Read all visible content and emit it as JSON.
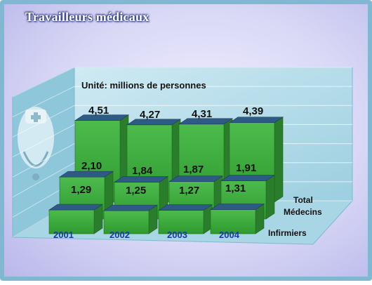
{
  "header": {
    "title": "Travailleurs médicaux"
  },
  "chart_data": {
    "type": "bar",
    "unit_label": "Unité: millions de personnes",
    "categories": [
      "2001",
      "2002",
      "2003",
      "2004"
    ],
    "series": [
      {
        "name": "Infirmiers",
        "values": [
          1.29,
          1.25,
          1.27,
          1.31
        ],
        "labels": [
          "1,29",
          "1,25",
          "1,27",
          "1,31"
        ]
      },
      {
        "name": "Médecins",
        "values": [
          2.1,
          1.84,
          1.87,
          1.91
        ],
        "labels": [
          "2,10",
          "1,84",
          "1,87",
          "1,91"
        ]
      },
      {
        "name": "Total",
        "values": [
          4.51,
          4.27,
          4.31,
          4.39
        ],
        "labels": [
          "4,51",
          "4,27",
          "4,31",
          "4,39"
        ]
      }
    ],
    "style": "3d-stacked-depth",
    "grid": true,
    "colors": {
      "bar_front": "#3faa3f",
      "bar_top": "#2e5a86",
      "bar_side": "#2a7d2a",
      "wall": "#b8dce9"
    }
  }
}
